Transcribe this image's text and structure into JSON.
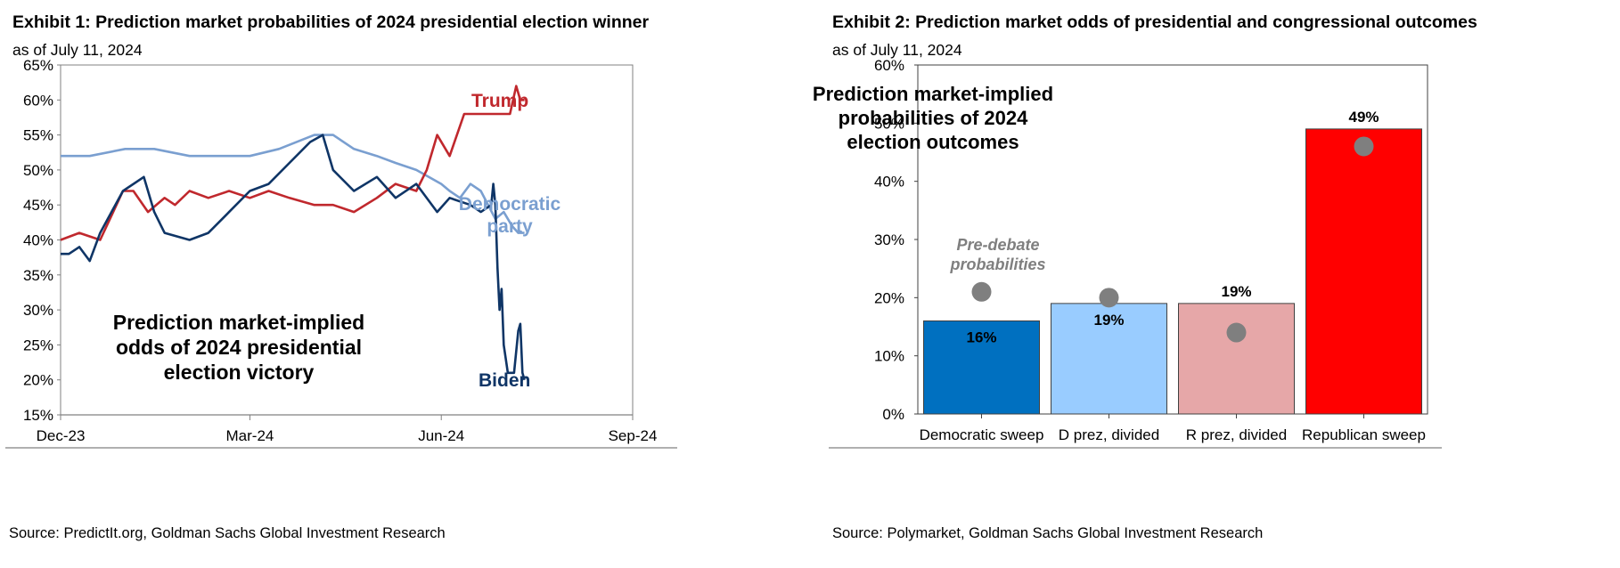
{
  "exhibit1": {
    "title": "Exhibit 1: Prediction market probabilities of 2024 presidential election winner",
    "subtitle": "as of July 11, 2024",
    "source": "Source: PredictIt.org, Goldman Sachs Global Investment Research"
  },
  "exhibit2": {
    "title": "Exhibit 2: Prediction market odds of presidential and congressional outcomes",
    "subtitle": "as of July 11, 2024",
    "source": "Source: Polymarket, Goldman Sachs Global Investment Research"
  },
  "chart_data": [
    {
      "type": "line",
      "ylim": [
        15,
        65
      ],
      "yticks": [
        "15%",
        "20%",
        "25%",
        "30%",
        "35%",
        "40%",
        "45%",
        "50%",
        "55%",
        "60%",
        "65%"
      ],
      "xlim": [
        "2023-12-01",
        "2024-09-01"
      ],
      "xticks": [
        "Dec-23",
        "Mar-24",
        "Jun-24",
        "Sep-24"
      ],
      "annotation": [
        "Prediction market-implied",
        "odds of 2024 presidential",
        "election victory"
      ],
      "colors": {
        "trump": "#c0282d",
        "democratic": "#7a9fd0",
        "biden": "#0f3566"
      },
      "series": [
        {
          "key": "trump",
          "label_lines": [
            "Trump"
          ],
          "x": [
            "2023-12-01",
            "2023-12-10",
            "2023-12-20",
            "2023-12-31",
            "2024-01-05",
            "2024-01-12",
            "2024-01-20",
            "2024-01-25",
            "2024-02-01",
            "2024-02-10",
            "2024-02-20",
            "2024-03-01",
            "2024-03-10",
            "2024-03-20",
            "2024-04-01",
            "2024-04-10",
            "2024-04-20",
            "2024-05-01",
            "2024-05-10",
            "2024-05-20",
            "2024-05-25",
            "2024-05-30",
            "2024-06-05",
            "2024-06-12",
            "2024-06-20",
            "2024-06-27",
            "2024-07-01",
            "2024-07-04",
            "2024-07-07",
            "2024-07-09",
            "2024-07-11"
          ],
          "values": [
            40,
            41,
            40,
            47,
            47,
            44,
            46,
            45,
            47,
            46,
            47,
            46,
            47,
            46,
            45,
            45,
            44,
            46,
            48,
            47,
            50,
            55,
            52,
            58,
            58,
            58,
            58,
            58,
            62,
            60,
            60
          ]
        },
        {
          "key": "democratic",
          "label_lines": [
            "Democratic",
            "party"
          ],
          "x": [
            "2023-12-01",
            "2023-12-15",
            "2024-01-01",
            "2024-01-15",
            "2024-02-01",
            "2024-02-15",
            "2024-03-01",
            "2024-03-15",
            "2024-04-01",
            "2024-04-10",
            "2024-04-20",
            "2024-05-01",
            "2024-05-10",
            "2024-05-20",
            "2024-06-01",
            "2024-06-05",
            "2024-06-10",
            "2024-06-15",
            "2024-06-20",
            "2024-06-27",
            "2024-07-01",
            "2024-07-05",
            "2024-07-08",
            "2024-07-11"
          ],
          "values": [
            52,
            52,
            53,
            53,
            52,
            52,
            52,
            53,
            55,
            55,
            53,
            52,
            51,
            50,
            48,
            47,
            46,
            48,
            47,
            43,
            44,
            42,
            41,
            41
          ]
        },
        {
          "key": "biden",
          "label_lines": [
            "Biden"
          ],
          "x": [
            "2023-12-01",
            "2023-12-05",
            "2023-12-10",
            "2023-12-15",
            "2023-12-20",
            "2023-12-31",
            "2024-01-10",
            "2024-01-15",
            "2024-01-20",
            "2024-02-01",
            "2024-02-10",
            "2024-02-20",
            "2024-03-01",
            "2024-03-10",
            "2024-03-20",
            "2024-03-30",
            "2024-04-05",
            "2024-04-10",
            "2024-04-20",
            "2024-05-01",
            "2024-05-10",
            "2024-05-20",
            "2024-05-30",
            "2024-06-05",
            "2024-06-15",
            "2024-06-20",
            "2024-06-25",
            "2024-06-26",
            "2024-06-27",
            "2024-06-28",
            "2024-06-29",
            "2024-06-30",
            "2024-07-01",
            "2024-07-02",
            "2024-07-03",
            "2024-07-04",
            "2024-07-06",
            "2024-07-08",
            "2024-07-09",
            "2024-07-10",
            "2024-07-11"
          ],
          "values": [
            38,
            38,
            39,
            37,
            41,
            47,
            49,
            44,
            41,
            40,
            41,
            44,
            47,
            48,
            51,
            54,
            55,
            50,
            47,
            49,
            46,
            48,
            44,
            46,
            45,
            44,
            45,
            48,
            45,
            36,
            30,
            33,
            25,
            23,
            21,
            21,
            21,
            27,
            28,
            21,
            20
          ]
        }
      ]
    },
    {
      "type": "bar",
      "ylim": [
        0,
        60
      ],
      "yticks": [
        "0%",
        "10%",
        "20%",
        "30%",
        "40%",
        "50%",
        "60%"
      ],
      "categories": [
        "Democratic sweep",
        "D prez, divided",
        "R prez, divided",
        "Republican sweep"
      ],
      "values": [
        16,
        19,
        19,
        49
      ],
      "value_labels": [
        "16%",
        "19%",
        "19%",
        "49%"
      ],
      "colors": [
        "#0070c0",
        "#99ccff",
        "#e6a7a8",
        "#ff0000"
      ],
      "pre_debate": {
        "label_lines": [
          "Pre-debate",
          "probabilities"
        ],
        "values": [
          21,
          20,
          14,
          46
        ],
        "color": "#7f7f7f"
      },
      "annotation": [
        "Prediction market-implied",
        "probabilities of 2024",
        "election outcomes"
      ]
    }
  ]
}
